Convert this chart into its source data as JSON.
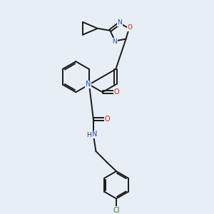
{
  "bg_color": "#e8eef5",
  "bond_color": "#1a1a1a",
  "nitrogen_color": "#2244cc",
  "oxygen_color": "#cc2200",
  "chlorine_color": "#228822",
  "bond_width": 1.4,
  "fig_w": 3.0,
  "fig_h": 3.0,
  "dpi": 100,
  "xlim": [
    0,
    10
  ],
  "ylim": [
    0,
    10
  ]
}
